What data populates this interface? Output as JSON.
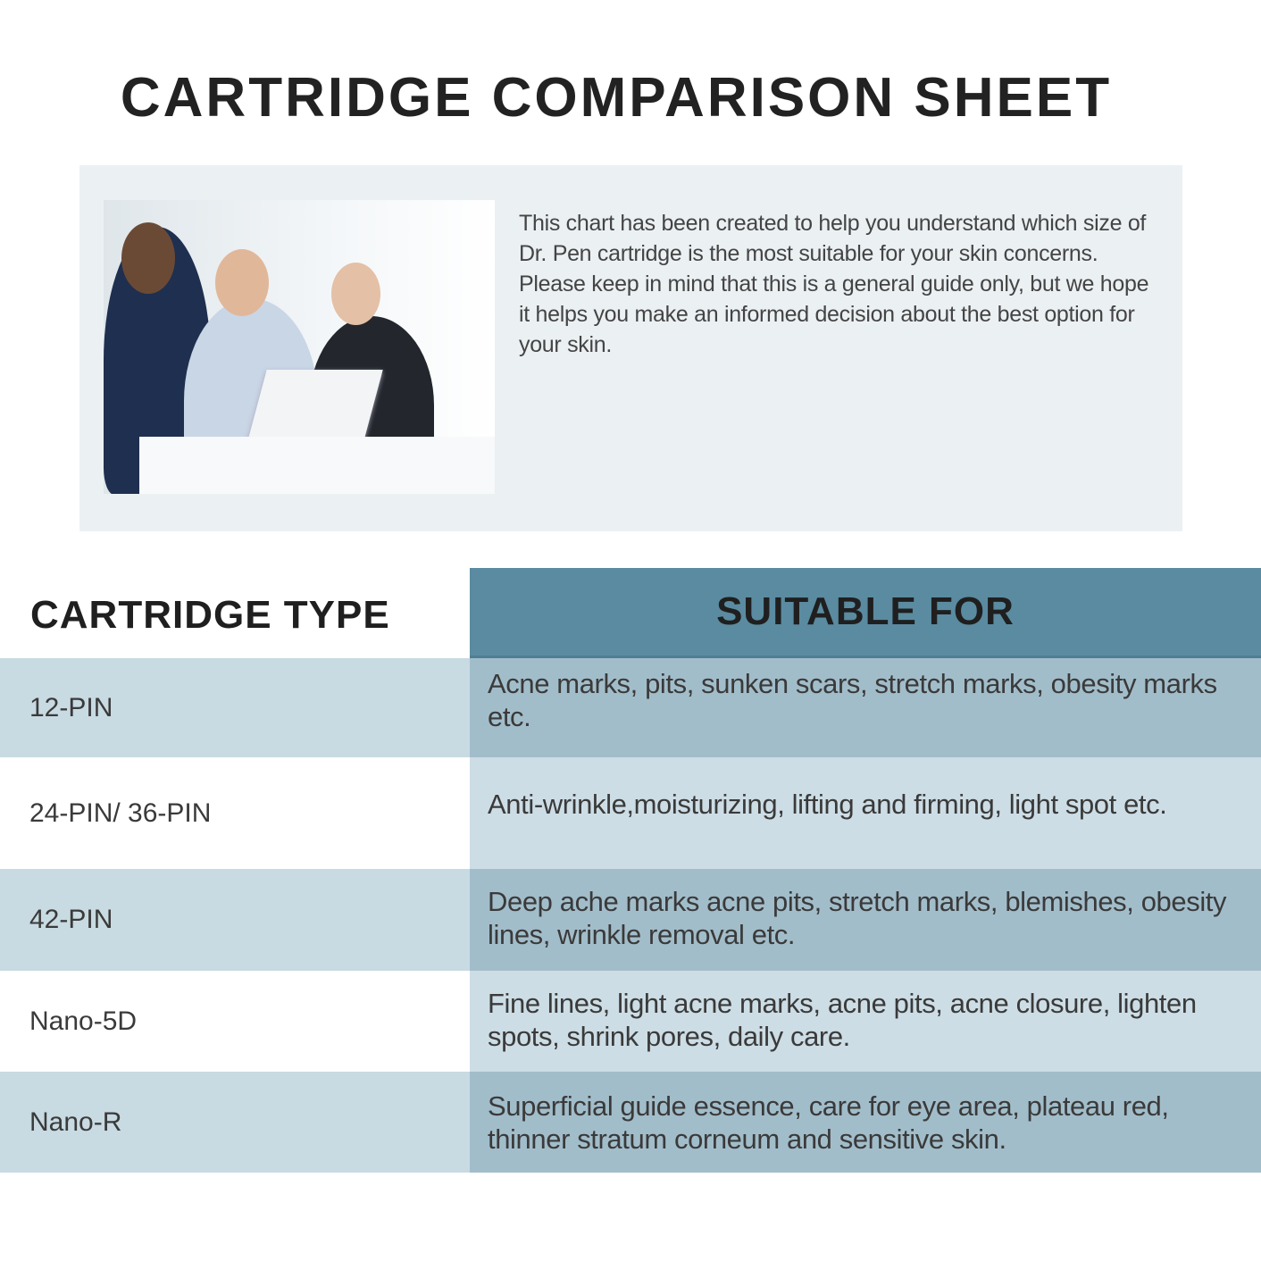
{
  "title": "CARTRIDGE COMPARISON SHEET",
  "intro": {
    "text": "This chart  has been created to help you understand which size of Dr. Pen cartridge is the most suitable for your skin concerns. Please keep in mind that this is a general guide only, but we hope it helps you make an informed decision about the best option for your skin."
  },
  "table": {
    "headers": [
      "CARTRIDGE TYPE",
      "SUITABLE FOR"
    ],
    "header_color": "#5a8ba0",
    "rows": [
      {
        "type": "12-PIN",
        "suitable": "Acne marks, pits, sunken scars, stretch marks, obesity marks etc."
      },
      {
        "type": "24-PIN/ 36-PIN",
        "suitable": "Anti-wrinkle,moisturizing, lifting and firming, light spot etc."
      },
      {
        "type": "42-PIN",
        "suitable": "Deep ache marks acne pits, stretch marks, blemishes, obesity lines, wrinkle removal etc."
      },
      {
        "type": "Nano-5D",
        "suitable": "Fine lines, light acne marks, acne pits, acne closure, lighten spots, shrink pores, daily care."
      },
      {
        "type": "Nano-R",
        "suitable": "Superficial guide essence, care for eye area, plateau red, thinner stratum corneum and sensitive skin."
      }
    ]
  }
}
